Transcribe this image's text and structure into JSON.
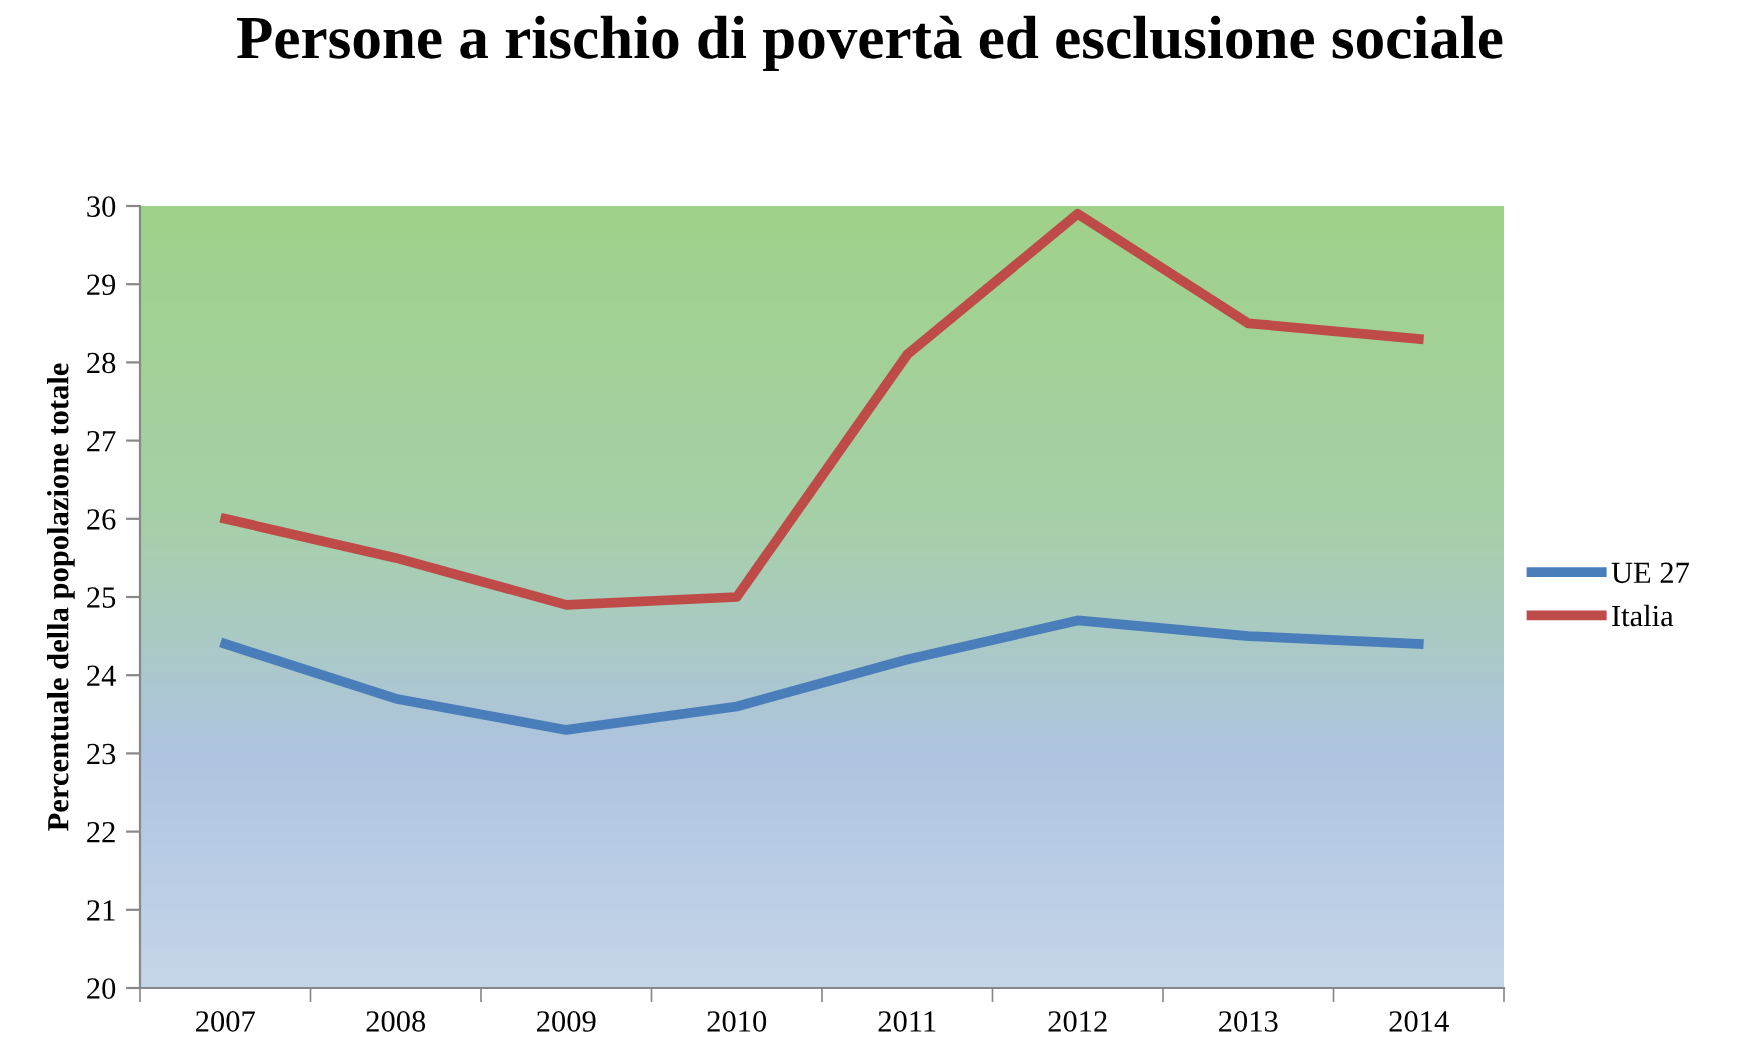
{
  "chart_data": {
    "type": "line",
    "title": "Persone a rischio di povertà ed esclusione sociale",
    "ylabel": "Percentuale della popolazione totale",
    "categories": [
      "2007",
      "2008",
      "2009",
      "2010",
      "2011",
      "2012",
      "2013",
      "2014"
    ],
    "series": [
      {
        "name": "UE 27",
        "color": "#4a7ebb",
        "values": [
          24.4,
          23.7,
          23.3,
          23.6,
          24.2,
          24.7,
          24.5,
          24.4
        ]
      },
      {
        "name": "Italia",
        "color": "#be4b48",
        "values": [
          26.0,
          25.5,
          24.9,
          25.0,
          28.1,
          29.9,
          28.5,
          28.3
        ]
      }
    ],
    "ylim": [
      20,
      30
    ],
    "yticks": [
      20,
      21,
      22,
      23,
      24,
      25,
      26,
      27,
      28,
      29,
      30
    ],
    "grid": false,
    "legend": "right",
    "marker": "none",
    "line_style": "solid"
  }
}
